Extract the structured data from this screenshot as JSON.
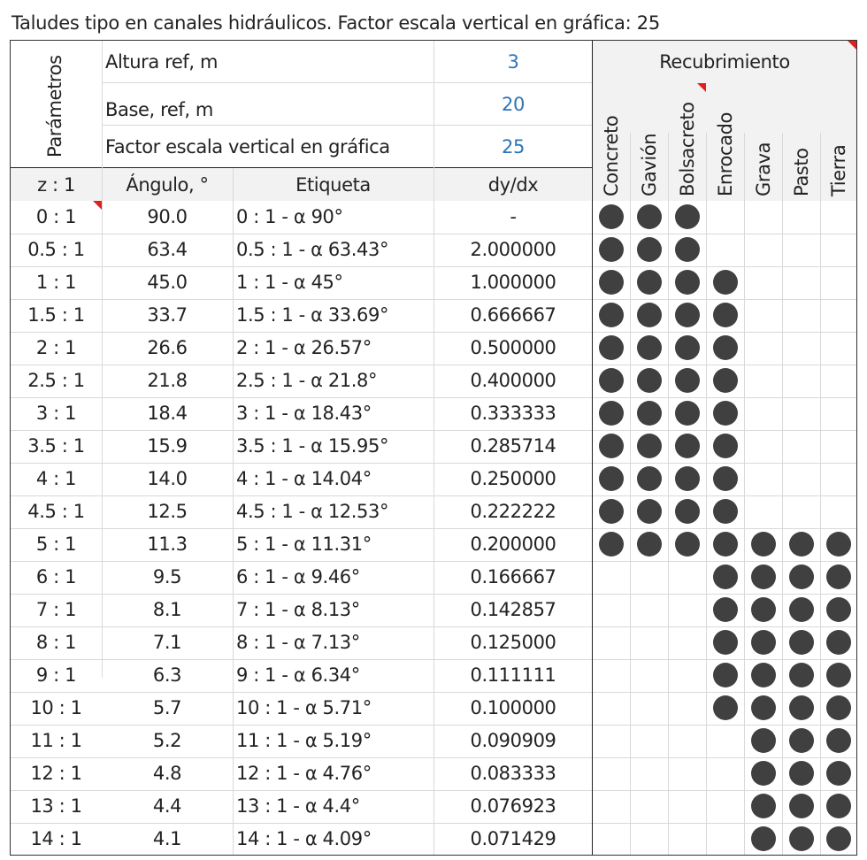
{
  "title": "Taludes tipo en canales hidráulicos. Factor escala vertical en gráfica: 25",
  "params": {
    "label": "Parámetros",
    "rows": [
      {
        "name": "Altura ref, m",
        "value": "3"
      },
      {
        "name": "Base, ref, m",
        "value": "20"
      },
      {
        "name": "Factor escala vertical en gráfica",
        "value": "25"
      }
    ]
  },
  "coating": {
    "title": "Recubrimiento",
    "types": [
      "Concreto",
      "Gavión",
      "Bolsacreto",
      "Enrocado",
      "Grava",
      "Pasto",
      "Tierra"
    ]
  },
  "columns": {
    "z": "z : 1",
    "angle": "Ángulo, °",
    "label": "Etiqueta",
    "slope": "dy/dx"
  },
  "rows": [
    {
      "z": "0 : 1",
      "angle": "90.0",
      "label": "0 : 1 - α 90°",
      "slope": "-",
      "marks": [
        1,
        1,
        1,
        0,
        0,
        0,
        0
      ]
    },
    {
      "z": "0.5 : 1",
      "angle": "63.4",
      "label": "0.5 : 1 - α 63.43°",
      "slope": "2.000000",
      "marks": [
        1,
        1,
        1,
        0,
        0,
        0,
        0
      ]
    },
    {
      "z": "1 : 1",
      "angle": "45.0",
      "label": "1 : 1 - α 45°",
      "slope": "1.000000",
      "marks": [
        1,
        1,
        1,
        1,
        0,
        0,
        0
      ]
    },
    {
      "z": "1.5 : 1",
      "angle": "33.7",
      "label": "1.5 : 1 - α 33.69°",
      "slope": "0.666667",
      "marks": [
        1,
        1,
        1,
        1,
        0,
        0,
        0
      ]
    },
    {
      "z": "2 : 1",
      "angle": "26.6",
      "label": "2 : 1 - α 26.57°",
      "slope": "0.500000",
      "marks": [
        1,
        1,
        1,
        1,
        0,
        0,
        0
      ]
    },
    {
      "z": "2.5 : 1",
      "angle": "21.8",
      "label": "2.5 : 1 - α 21.8°",
      "slope": "0.400000",
      "marks": [
        1,
        1,
        1,
        1,
        0,
        0,
        0
      ]
    },
    {
      "z": "3 : 1",
      "angle": "18.4",
      "label": "3 : 1 - α 18.43°",
      "slope": "0.333333",
      "marks": [
        1,
        1,
        1,
        1,
        0,
        0,
        0
      ]
    },
    {
      "z": "3.5 : 1",
      "angle": "15.9",
      "label": "3.5 : 1 - α 15.95°",
      "slope": "0.285714",
      "marks": [
        1,
        1,
        1,
        1,
        0,
        0,
        0
      ]
    },
    {
      "z": "4 : 1",
      "angle": "14.0",
      "label": "4 : 1 - α 14.04°",
      "slope": "0.250000",
      "marks": [
        1,
        1,
        1,
        1,
        0,
        0,
        0
      ]
    },
    {
      "z": "4.5 : 1",
      "angle": "12.5",
      "label": "4.5 : 1 - α 12.53°",
      "slope": "0.222222",
      "marks": [
        1,
        1,
        1,
        1,
        0,
        0,
        0
      ]
    },
    {
      "z": "5 : 1",
      "angle": "11.3",
      "label": "5 : 1 - α 11.31°",
      "slope": "0.200000",
      "marks": [
        1,
        1,
        1,
        1,
        1,
        1,
        1
      ]
    },
    {
      "z": "6 : 1",
      "angle": "9.5",
      "label": "6 : 1 - α 9.46°",
      "slope": "0.166667",
      "marks": [
        0,
        0,
        0,
        1,
        1,
        1,
        1
      ]
    },
    {
      "z": "7 : 1",
      "angle": "8.1",
      "label": "7 : 1 - α 8.13°",
      "slope": "0.142857",
      "marks": [
        0,
        0,
        0,
        1,
        1,
        1,
        1
      ]
    },
    {
      "z": "8 : 1",
      "angle": "7.1",
      "label": "8 : 1 - α 7.13°",
      "slope": "0.125000",
      "marks": [
        0,
        0,
        0,
        1,
        1,
        1,
        1
      ]
    },
    {
      "z": "9 : 1",
      "angle": "6.3",
      "label": "9 : 1 - α 6.34°",
      "slope": "0.111111",
      "marks": [
        0,
        0,
        0,
        1,
        1,
        1,
        1
      ]
    },
    {
      "z": "10 : 1",
      "angle": "5.7",
      "label": "10 : 1 - α 5.71°",
      "slope": "0.100000",
      "marks": [
        0,
        0,
        0,
        1,
        1,
        1,
        1
      ]
    },
    {
      "z": "11 : 1",
      "angle": "5.2",
      "label": "11 : 1 - α 5.19°",
      "slope": "0.090909",
      "marks": [
        0,
        0,
        0,
        0,
        1,
        1,
        1
      ]
    },
    {
      "z": "12 : 1",
      "angle": "4.8",
      "label": "12 : 1 - α 4.76°",
      "slope": "0.083333",
      "marks": [
        0,
        0,
        0,
        0,
        1,
        1,
        1
      ]
    },
    {
      "z": "13 : 1",
      "angle": "4.4",
      "label": "13 : 1 - α 4.4°",
      "slope": "0.076923",
      "marks": [
        0,
        0,
        0,
        0,
        1,
        1,
        1
      ]
    },
    {
      "z": "14 : 1",
      "angle": "4.1",
      "label": "14 : 1 - α 4.09°",
      "slope": "0.071429",
      "marks": [
        0,
        0,
        0,
        0,
        1,
        1,
        1
      ]
    }
  ],
  "colors": {
    "value_text": "#2e75b6",
    "dot": "#404040",
    "comment_flag": "#e02020",
    "header_bg": "#f2f2f2"
  }
}
